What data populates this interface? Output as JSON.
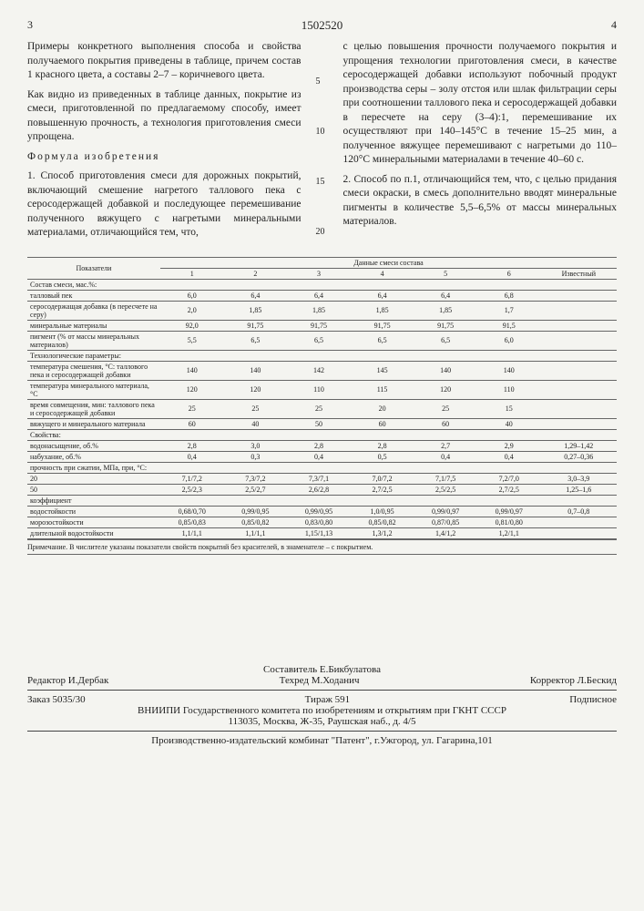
{
  "page_left": "3",
  "patent_number": "1502520",
  "page_right": "4",
  "line_markers": [
    "5",
    "10",
    "15",
    "20"
  ],
  "left_column_paragraphs": [
    "Примеры конкретного выполнения способа и свойства получаемого покрытия приведены в таблице, причем состав 1 красного цвета, а составы 2–7 – коричневого цвета.",
    "Как видно из приведенных в таблице данных, покрытие из смеси, приготовленной по предлагаемому способу, имеет повышенную прочность, а технология приготовления смеси упрощена."
  ],
  "formula_heading": "Формула изобретения",
  "left_formula_claim": "1. Способ приготовления смеси для дорожных покрытий, включающий смешение нагретого таллового пека с серосодержащей добавкой и последующее перемешивание полученного вяжущего с нагретыми минеральными материалами, отличающийся тем, что,",
  "right_column_paragraphs": [
    "с целью повышения прочности получаемого покрытия и упрощения технологии приготовления смеси, в качестве серосодержащей добавки используют побочный продукт производства серы – золу отстоя или шлак фильтрации серы при соотношении таллового пека и серосодержащей добавки в пересчете на серу (3–4):1, перемешивание их осуществляют при 140–145°С в течение 15–25 мин, а полученное вяжущее перемешивают с нагретыми до 110–120°С минеральными материалами в течение 40–60 с.",
    "2. Способ по п.1, отличающийся тем, что, с целью придания смеси окраски, в смесь дополнительно вводят минеральные пигменты в количестве 5,5–6,5% от массы минеральных материалов."
  ],
  "table": {
    "header_main": "Показатели",
    "header_group": "Данные смеси состава",
    "columns": [
      "1",
      "2",
      "3",
      "4",
      "5",
      "6",
      "Известный"
    ],
    "rows": [
      {
        "label": "Состав смеси, мас.%:",
        "vals": [
          "",
          "",
          "",
          "",
          "",
          "",
          ""
        ]
      },
      {
        "label": "талловый пек",
        "vals": [
          "6,0",
          "6,4",
          "6,4",
          "6,4",
          "6,4",
          "6,8",
          ""
        ]
      },
      {
        "label": "серосодержащая добавка (в пересчете на серу)",
        "vals": [
          "2,0",
          "1,85",
          "1,85",
          "1,85",
          "1,85",
          "1,7",
          ""
        ]
      },
      {
        "label": "минеральные материалы",
        "vals": [
          "92,0",
          "91,75",
          "91,75",
          "91,75",
          "91,75",
          "91,5",
          ""
        ]
      },
      {
        "label": "пигмент (% от массы минеральных материалов)",
        "vals": [
          "5,5",
          "6,5",
          "6,5",
          "6,5",
          "6,5",
          "6,0",
          ""
        ]
      },
      {
        "label": "Технологические параметры:",
        "vals": [
          "",
          "",
          "",
          "",
          "",
          "",
          ""
        ]
      },
      {
        "label": "температура смешения, °С: таллового пека и серосодержащей добавки",
        "vals": [
          "140",
          "140",
          "142",
          "145",
          "140",
          "140",
          ""
        ]
      },
      {
        "label": "температура минерального материала, °С",
        "vals": [
          "120",
          "120",
          "110",
          "115",
          "120",
          "110",
          ""
        ]
      },
      {
        "label": "время совмещения, мин: таллового пека и серосодержащей добавки",
        "vals": [
          "25",
          "25",
          "25",
          "20",
          "25",
          "15",
          ""
        ]
      },
      {
        "label": "вяжущего и минерального материала",
        "vals": [
          "60",
          "40",
          "50",
          "60",
          "60",
          "40",
          ""
        ]
      },
      {
        "label": "Свойства:",
        "vals": [
          "",
          "",
          "",
          "",
          "",
          "",
          ""
        ]
      },
      {
        "label": "водонасыщение, об.%",
        "vals": [
          "2,8",
          "3,0",
          "2,8",
          "2,8",
          "2,7",
          "2,9",
          "1,29–1,42"
        ]
      },
      {
        "label": "набухание, об.%",
        "vals": [
          "0,4",
          "0,3",
          "0,4",
          "0,5",
          "0,4",
          "0,4",
          "0,27–0,36"
        ]
      },
      {
        "label": "прочность при сжатии, МПа, при, °С:",
        "vals": [
          "",
          "",
          "",
          "",
          "",
          "",
          ""
        ]
      },
      {
        "label": "20",
        "vals": [
          "7,1/7,2",
          "7,3/7,2",
          "7,3/7,1",
          "7,0/7,2",
          "7,1/7,5",
          "7,2/7,0",
          "3,0–3,9"
        ]
      },
      {
        "label": "50",
        "vals": [
          "2,5/2,3",
          "2,5/2,7",
          "2,6/2,8",
          "2,7/2,5",
          "2,5/2,5",
          "2,7/2,5",
          "1,25–1,6"
        ]
      },
      {
        "label": "коэффициент",
        "vals": [
          "",
          "",
          "",
          "",
          "",
          "",
          ""
        ]
      },
      {
        "label": "водостойкости",
        "vals": [
          "0,68/0,70",
          "0,99/0,95",
          "0,99/0,95",
          "1,0/0,95",
          "0,99/0,97",
          "0,99/0,97",
          "0,7–0,8"
        ]
      },
      {
        "label": "морозостойкости",
        "vals": [
          "0,85/0,83",
          "0,85/0,82",
          "0,83/0,80",
          "0,85/0,82",
          "0,87/0,85",
          "0,81/0,80",
          ""
        ]
      },
      {
        "label": "длительной водостойкости",
        "vals": [
          "1,1/1,1",
          "1,1/1,1",
          "1,15/1,13",
          "1,3/1,2",
          "1,4/1,2",
          "1,2/1,1",
          ""
        ]
      }
    ],
    "footnote": "Примечание. В числителе указаны показатели свойств покрытий без красителей, в знаменателе – с покрытием."
  },
  "footer": {
    "compiler": "Составитель Е.Бикбулатова",
    "editor": "Редактор И.Дербак",
    "techred": "Техред М.Ходанич",
    "corrector": "Корректор Л.Бескид",
    "order": "Заказ 5035/30",
    "tirage": "Тираж 591",
    "signed": "Подписное",
    "org": "ВНИИПИ Государственного комитета по изобретениям и открытиям при ГКНТ СССР",
    "address1": "113035, Москва, Ж-35, Раушская наб., д. 4/5",
    "address2": "Производственно-издательский комбинат \"Патент\", г.Ужгород, ул. Гагарина,101"
  }
}
